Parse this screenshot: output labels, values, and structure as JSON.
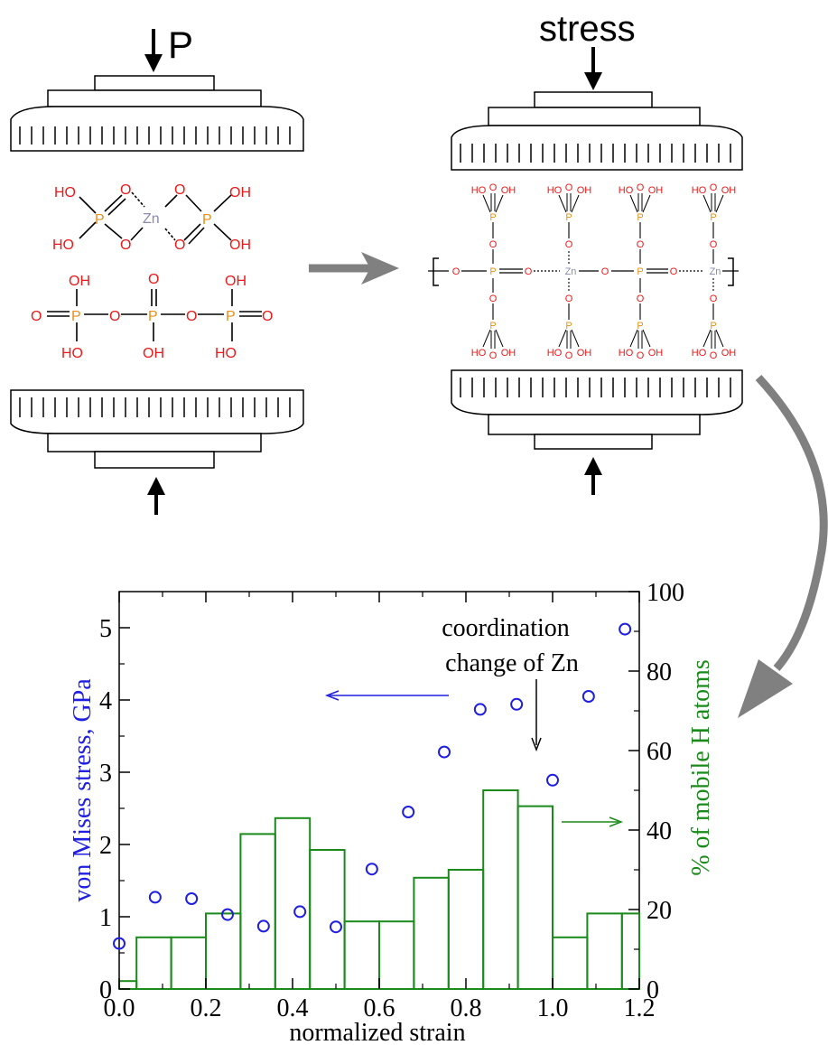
{
  "top": {
    "pressure_label": "P",
    "stress_label": "stress"
  },
  "chem_left": {
    "zn_complex": {
      "ho_labels": [
        "HO",
        "HO"
      ],
      "oh_labels": [
        "OH",
        "OH"
      ],
      "o_labels": [
        "O",
        "O",
        "O",
        "O"
      ],
      "p_labels": [
        "P",
        "P"
      ],
      "zn_label": "Zn"
    },
    "triphosphate": {
      "oh_labels": [
        "OH",
        "OH"
      ],
      "ho_labels": [
        "HO",
        "HO"
      ],
      "o_labels": [
        "O",
        "O",
        "O",
        "O",
        "O",
        "O"
      ],
      "p_labels": [
        "P",
        "P",
        "P"
      ],
      "oh_mid": "OH"
    }
  },
  "chem_right": {
    "chain": [
      "O",
      "P",
      "O",
      "Zn",
      "O",
      "P",
      "O",
      "Zn"
    ],
    "p_label": "P",
    "o_label": "O",
    "zn_label": "Zn",
    "ho": "HO",
    "oh": "OH"
  },
  "chart_data": {
    "type": "scatter",
    "xlabel": "normalized strain",
    "ylabel_left": "von Mises stress, GPa",
    "ylabel_right": "% of mobile H atoms",
    "xlim": [
      0.0,
      1.2
    ],
    "ylim_left": [
      0,
      5.5
    ],
    "ylim_right": [
      0,
      100
    ],
    "x_ticks": [
      "0.0",
      "0.2",
      "0.4",
      "0.6",
      "0.8",
      "1.0",
      "1.2"
    ],
    "y_ticks_left": [
      "0",
      "1",
      "2",
      "3",
      "4",
      "5"
    ],
    "y_ticks_right": [
      "0",
      "20",
      "40",
      "60",
      "80",
      "100"
    ],
    "annotation": [
      "coordination",
      "change of Zn"
    ],
    "series": [
      {
        "name": "von Mises stress",
        "kind": "scatter",
        "color": "#1f1fe0",
        "x": [
          0.0,
          0.083,
          0.167,
          0.25,
          0.333,
          0.417,
          0.5,
          0.583,
          0.667,
          0.75,
          0.833,
          0.917,
          1.0,
          1.083,
          1.167
        ],
        "y": [
          0.63,
          1.27,
          1.25,
          1.03,
          0.87,
          1.07,
          0.86,
          1.66,
          2.45,
          3.28,
          3.87,
          3.94,
          2.89,
          4.05,
          4.98
        ]
      },
      {
        "name": "% of mobile H atoms",
        "kind": "histogram",
        "color": "#1a8a1a",
        "bin_edges": [
          0.0,
          0.04,
          0.12,
          0.2,
          0.28,
          0.36,
          0.44,
          0.52,
          0.6,
          0.68,
          0.76,
          0.84,
          0.92,
          1.0,
          1.08,
          1.16,
          1.2
        ],
        "values": [
          2,
          13,
          13,
          19,
          39,
          43,
          35,
          17,
          17,
          28,
          30,
          50,
          46,
          13,
          19,
          19
        ]
      }
    ]
  },
  "colors": {
    "oxygen": "#e81a1a",
    "phosphorus": "#e8901a",
    "zinc": "#8a8ab0",
    "arrow_gray": "#808080",
    "stress_blue": "#1f1fe0",
    "hatom_green": "#1a8a1a"
  }
}
